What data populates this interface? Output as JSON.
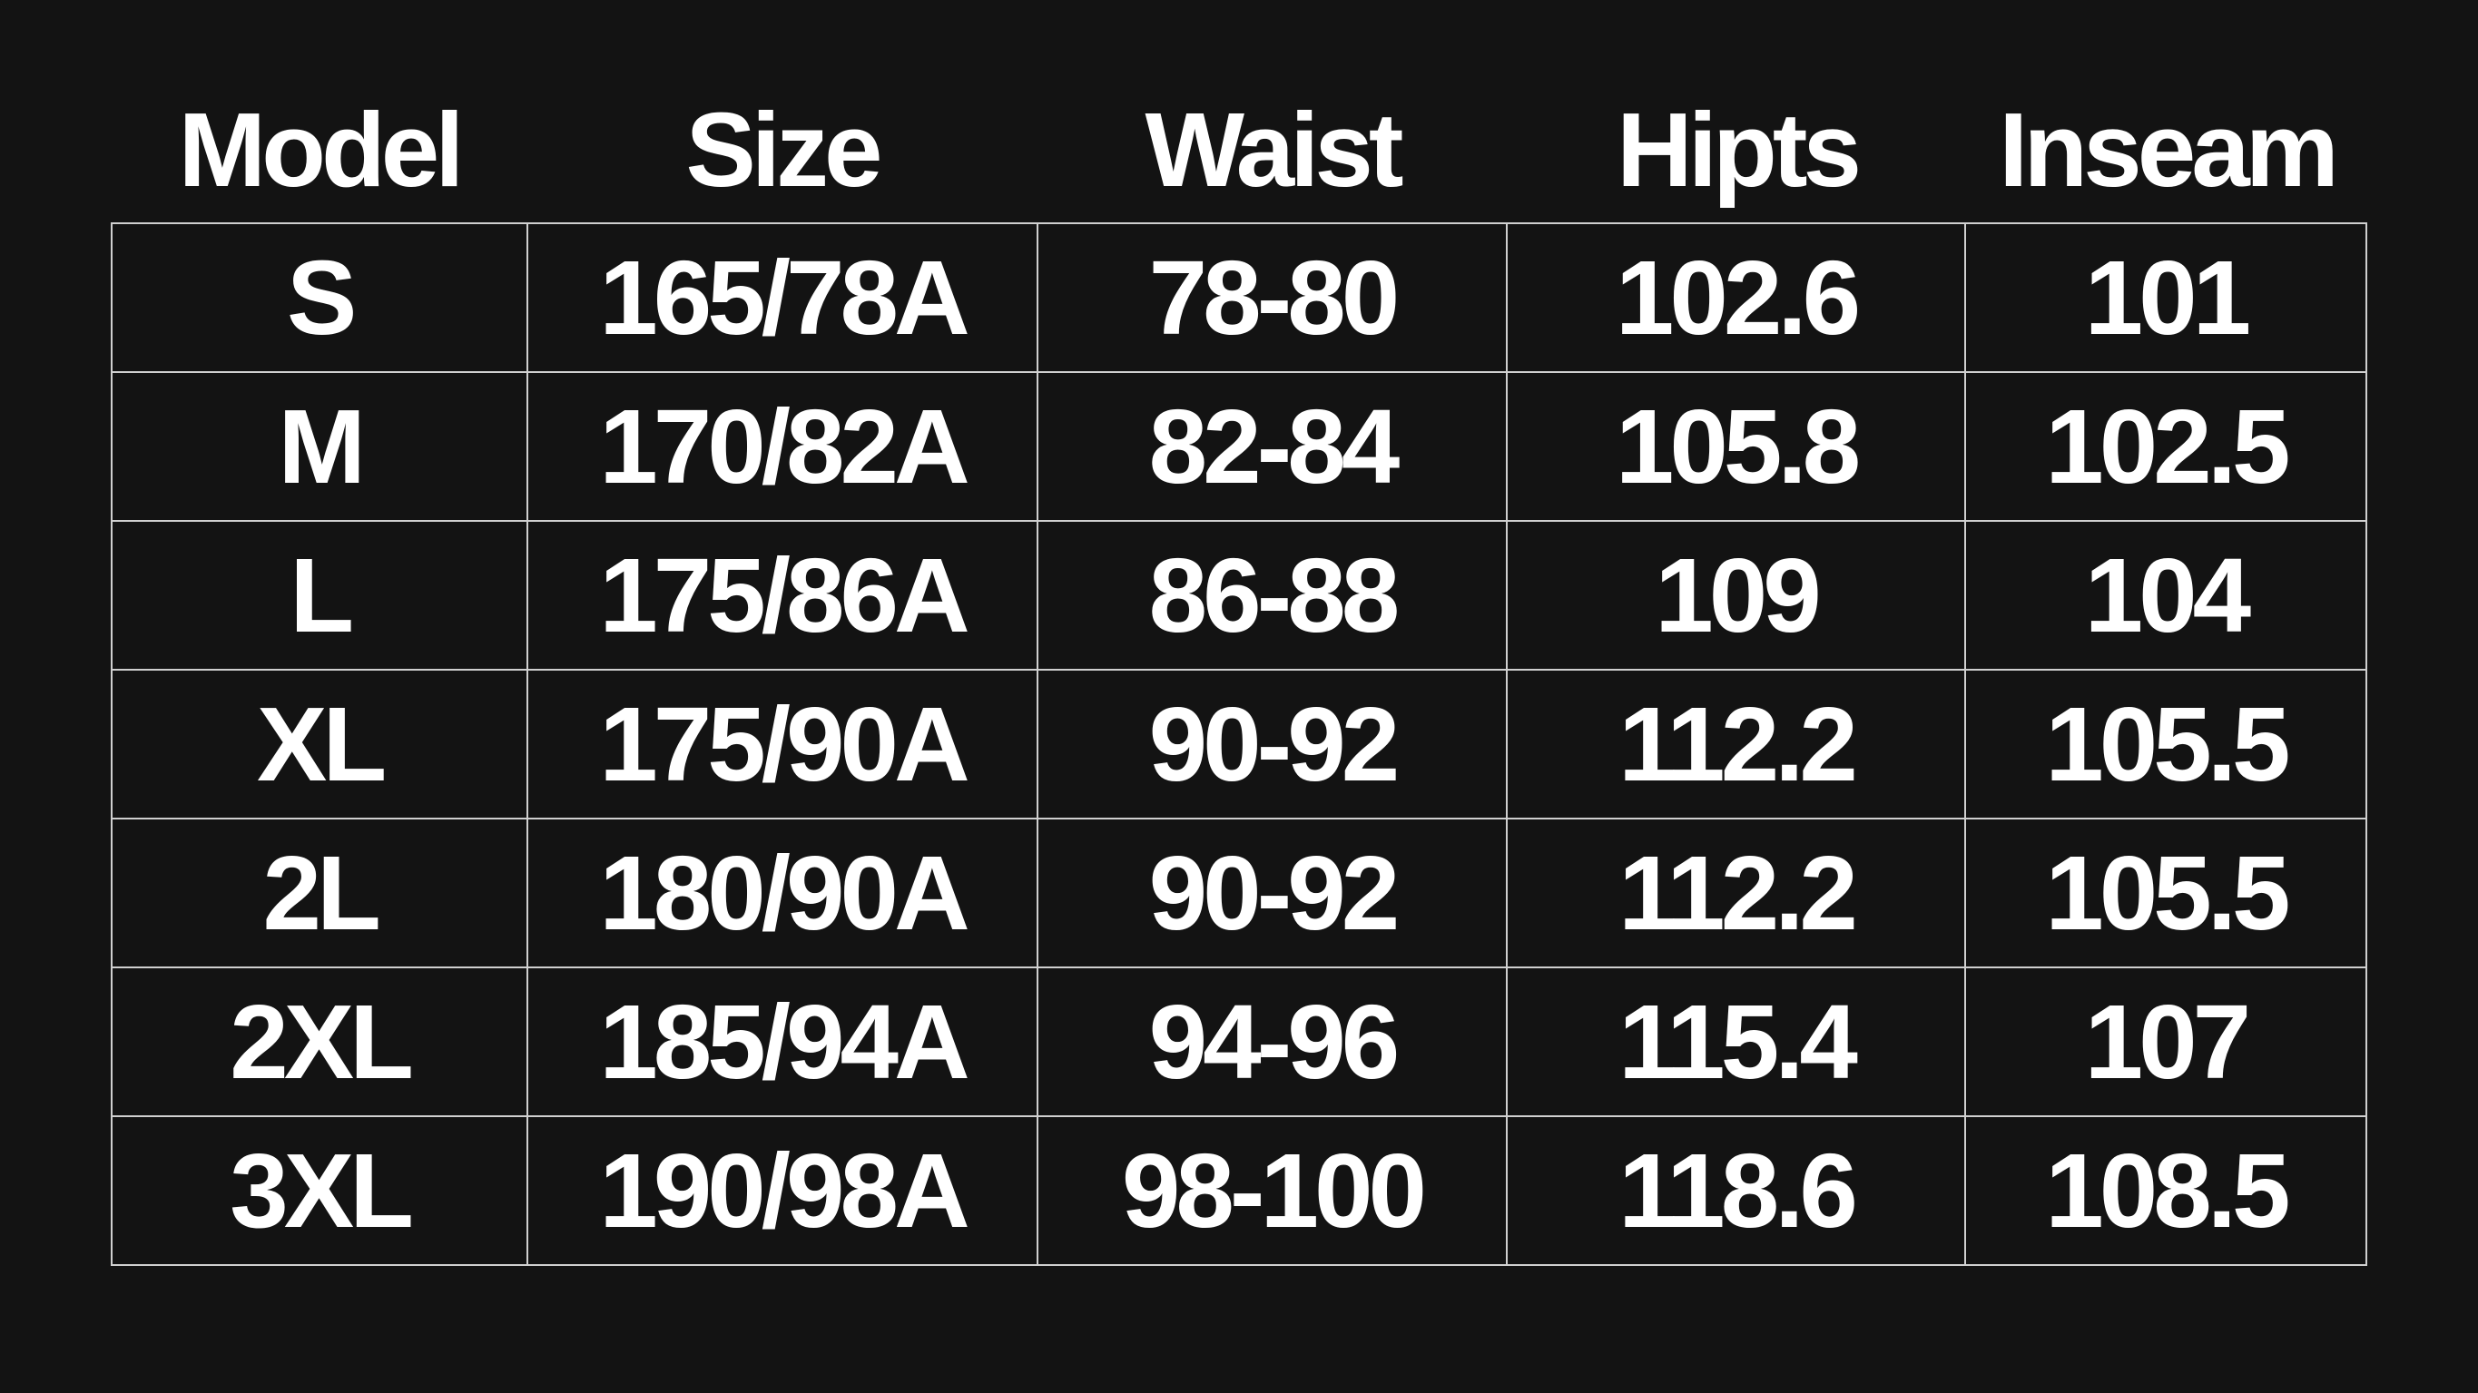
{
  "headers": [
    "Model",
    "Size",
    "Waist",
    "Hipts",
    "Inseam"
  ],
  "rows": [
    [
      "S",
      "165/78A",
      "78-80",
      "102.6",
      "101"
    ],
    [
      "M",
      "170/82A",
      "82-84",
      "105.8",
      "102.5"
    ],
    [
      "L",
      "175/86A",
      "86-88",
      "109",
      "104"
    ],
    [
      "XL",
      "175/90A",
      "90-92",
      "112.2",
      "105.5"
    ],
    [
      "2L",
      "180/90A",
      "90-92",
      "112.2",
      "105.5"
    ],
    [
      "2XL",
      "185/94A",
      "94-96",
      "115.4",
      "107"
    ],
    [
      "3XL",
      "190/98A",
      "98-100",
      "118.6",
      "108.5"
    ]
  ],
  "colors": {
    "background": "#131313",
    "text": "#ffffff",
    "grid": "#d0d0d0"
  }
}
